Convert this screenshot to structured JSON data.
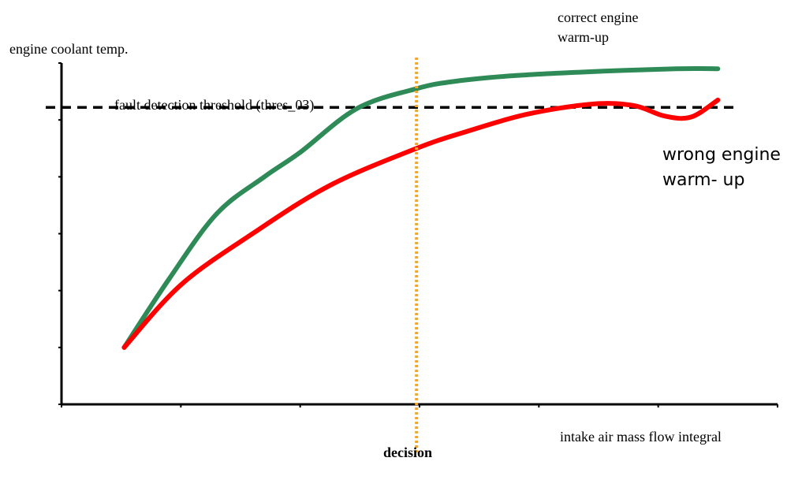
{
  "chart_data": {
    "type": "line",
    "ylabel": "engine coolant temp.",
    "xlabel": "intake air mass flow integral",
    "threshold": {
      "label": "fault detection threshold (thres_03)",
      "y": 5.22,
      "color": "#000000",
      "style": "dashed"
    },
    "decision": {
      "label": "decision",
      "x": 5.95,
      "color": "#f5a623",
      "style": "dotted"
    },
    "xlim": [
      0,
      12
    ],
    "ylim": [
      0,
      6
    ],
    "x_ticks": [
      0,
      2,
      4,
      6,
      8,
      10,
      12
    ],
    "y_ticks": [
      0,
      1,
      2,
      3,
      4,
      5,
      6
    ],
    "grid": false,
    "series": [
      {
        "name": "correct engine warm-up",
        "color": "#2e8b57",
        "points": [
          [
            1.05,
            1.0
          ],
          [
            1.8,
            2.2
          ],
          [
            2.6,
            3.35
          ],
          [
            3.4,
            4.0
          ],
          [
            4.0,
            4.43
          ],
          [
            4.95,
            5.2
          ],
          [
            5.95,
            5.55
          ],
          [
            6.6,
            5.68
          ],
          [
            7.6,
            5.78
          ],
          [
            8.9,
            5.85
          ],
          [
            10.3,
            5.9
          ],
          [
            11.0,
            5.9
          ]
        ]
      },
      {
        "name": "wrong engine warm-up",
        "color": "#ff0000",
        "points": [
          [
            1.05,
            1.0
          ],
          [
            2.0,
            2.1
          ],
          [
            3.2,
            3.0
          ],
          [
            4.5,
            3.85
          ],
          [
            5.95,
            4.5
          ],
          [
            6.8,
            4.8
          ],
          [
            7.8,
            5.1
          ],
          [
            8.9,
            5.28
          ],
          [
            9.6,
            5.25
          ],
          [
            10.1,
            5.07
          ],
          [
            10.55,
            5.05
          ],
          [
            11.0,
            5.35
          ]
        ]
      }
    ],
    "annotations": [
      {
        "id": "correct",
        "text_line1": "correct engine",
        "text_line2": "warm-up"
      },
      {
        "id": "wrong",
        "text_line1": "wrong engine",
        "text_line2": "warm- up"
      }
    ]
  }
}
